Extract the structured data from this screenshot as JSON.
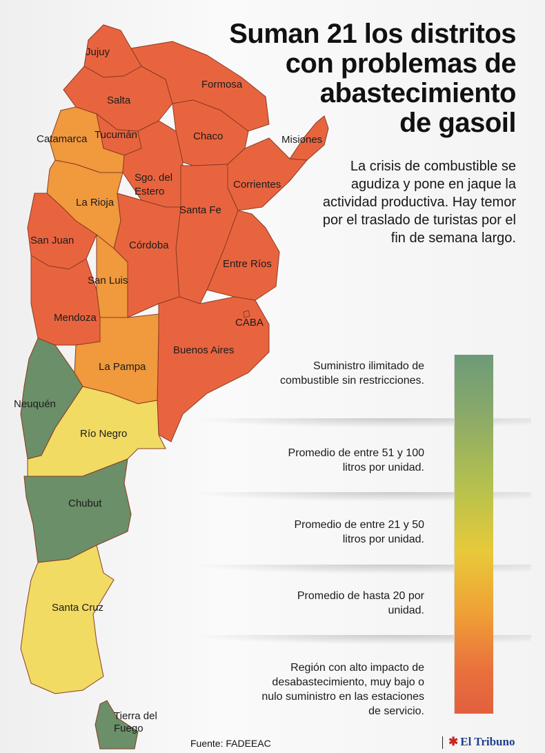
{
  "title_lines": [
    "Suman 21 los distritos",
    "con problemas de",
    "abastecimiento",
    "de gasoil"
  ],
  "subtitle": "La crisis de combustible se agudiza y pone en jaque la actividad productiva. Hay temor por el traslado de turistas por el fin de semana largo.",
  "colors": {
    "green": "#6b8f68",
    "yellow": "#f1db63",
    "orange": "#f0993d",
    "red": "#e8643f"
  },
  "provinces": [
    {
      "name": "Jujuy",
      "level": "red"
    },
    {
      "name": "Salta",
      "level": "red"
    },
    {
      "name": "Formosa",
      "level": "red"
    },
    {
      "name": "Tucumán",
      "level": "red"
    },
    {
      "name": "Chaco",
      "level": "red"
    },
    {
      "name": "Misiones",
      "level": "red"
    },
    {
      "name": "Catamarca",
      "level": "orange"
    },
    {
      "name": "Sgo. del Estero",
      "level": "red"
    },
    {
      "name": "Corrientes",
      "level": "red"
    },
    {
      "name": "La Rioja",
      "level": "orange"
    },
    {
      "name": "Santa Fe",
      "level": "red"
    },
    {
      "name": "San Juan",
      "level": "red"
    },
    {
      "name": "Córdoba",
      "level": "red"
    },
    {
      "name": "Entre Ríos",
      "level": "red"
    },
    {
      "name": "San Luis",
      "level": "orange"
    },
    {
      "name": "Mendoza",
      "level": "red"
    },
    {
      "name": "CABA",
      "level": "red"
    },
    {
      "name": "Buenos Aires",
      "level": "red"
    },
    {
      "name": "La Pampa",
      "level": "orange"
    },
    {
      "name": "Neuquén",
      "level": "green"
    },
    {
      "name": "Río Negro",
      "level": "yellow"
    },
    {
      "name": "Chubut",
      "level": "green"
    },
    {
      "name": "Santa Cruz",
      "level": "yellow"
    },
    {
      "name": "Tierra del Fuego",
      "level": "green"
    }
  ],
  "legend": [
    "Suministro ilimitado de combustible sin restricciones.",
    "Promedio de entre 51 y 100 litros por unidad.",
    "Promedio de entre 21 y 50 litros por unidad.",
    "Promedio de hasta 20 por unidad.",
    "Región con alto impacto de desabastecimiento, muy bajo o nulo suministro en las estaciones de servicio."
  ],
  "source": "Fuente: FADEEAC",
  "brand": "El Tribuno"
}
